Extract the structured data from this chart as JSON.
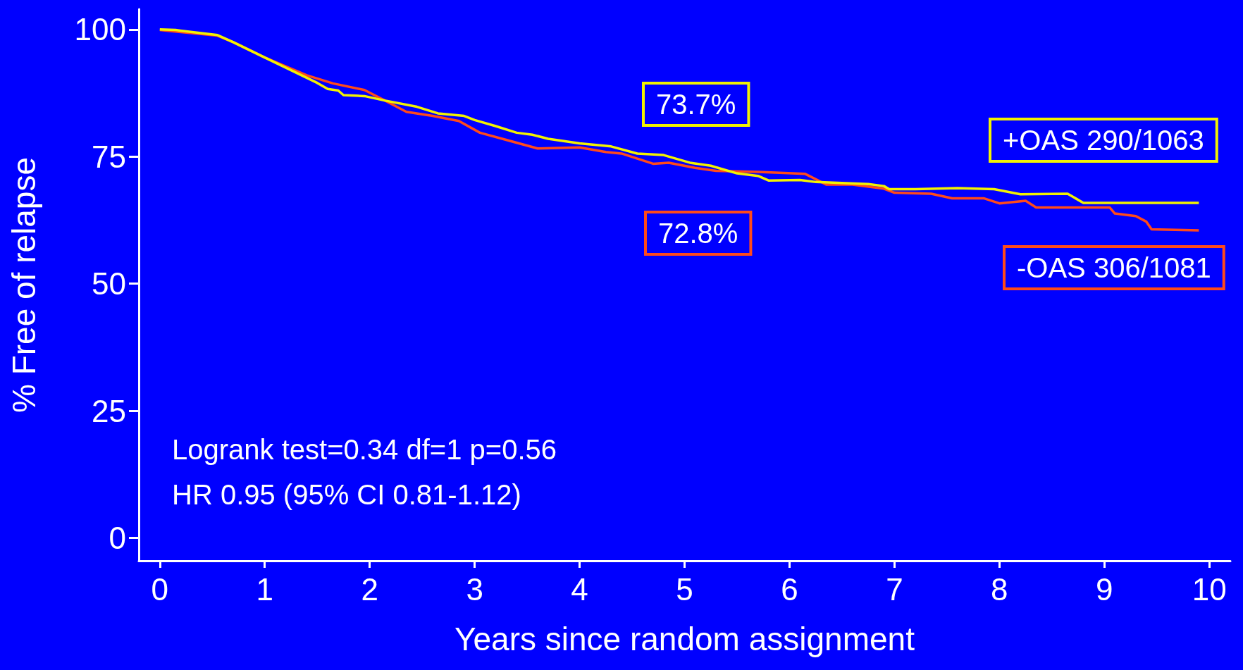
{
  "chart_data": {
    "type": "line",
    "xlabel": "Years since random assignment",
    "ylabel": "% Free of relapse",
    "xlim": [
      -0.2,
      10.2
    ],
    "ylim": [
      -4.5,
      104
    ],
    "xticks": [
      0,
      1,
      2,
      3,
      4,
      5,
      6,
      7,
      8,
      9,
      10
    ],
    "yticks": [
      0,
      25,
      50,
      75,
      100
    ],
    "grid": false,
    "legend": false,
    "marker": "none",
    "line_style": "solid",
    "annotations": [
      "73.7%",
      "72.8%",
      "Logrank test=0.34 df=1 p=0.56",
      "HR 0.95 (95% CI 0.81-1.12)"
    ],
    "series": [
      {
        "name": "+OAS 290/1063",
        "color": "#f2f200",
        "x": [
          0,
          0.15,
          0.55,
          0.7,
          1,
          1.5,
          1.6,
          1.7,
          1.75,
          1.95,
          2.15,
          2.45,
          2.65,
          2.9,
          3.0,
          3.2,
          3.4,
          3.55,
          3.7,
          4.0,
          4.3,
          4.55,
          4.8,
          5.05,
          5.25,
          5.5,
          5.7,
          5.8,
          6.1,
          6.25,
          6.5,
          6.75,
          6.9,
          6.95,
          7.2,
          7.6,
          7.95,
          8.2,
          8.65,
          8.8,
          9.9
        ],
        "values": [
          100,
          99.9,
          98.9,
          97.5,
          94.5,
          89.5,
          88.3,
          88,
          87.1,
          86.9,
          86,
          84.8,
          83.5,
          83,
          82.2,
          81,
          79.7,
          79.3,
          78.5,
          77.6,
          77,
          75.6,
          75.3,
          73.8,
          73.2,
          71.7,
          71.2,
          70.3,
          70.4,
          70,
          69.8,
          69.6,
          69.2,
          68.6,
          68.6,
          68.8,
          68.6,
          67.6,
          67.7,
          65.9,
          65.9
        ]
      },
      {
        "name": "-OAS 306/1081",
        "color": "#ff4a1a",
        "x": [
          0,
          0.55,
          0.7,
          1,
          1.4,
          1.65,
          1.95,
          2.1,
          2.35,
          2.6,
          2.85,
          3.05,
          3.3,
          3.6,
          4,
          4.25,
          4.4,
          4.7,
          4.85,
          5.1,
          5.3,
          5.7,
          6.15,
          6.35,
          6.6,
          6.9,
          7.0,
          7.35,
          7.55,
          7.85,
          8.0,
          8.25,
          8.35,
          9.05,
          9.1,
          9.3,
          9.4,
          9.45,
          9.9
        ],
        "values": [
          99.9,
          98.8,
          97.5,
          94.5,
          91,
          89.4,
          88.1,
          86.5,
          83.8,
          83,
          82,
          79.7,
          78.3,
          76.6,
          76.8,
          75.9,
          75.6,
          73.6,
          73.8,
          72.8,
          72.2,
          72,
          71.6,
          69.5,
          69.5,
          68.7,
          67.9,
          67.7,
          66.8,
          66.8,
          65.8,
          66.3,
          65,
          65,
          63.8,
          63.3,
          62.2,
          60.7,
          60.5
        ]
      }
    ]
  }
}
